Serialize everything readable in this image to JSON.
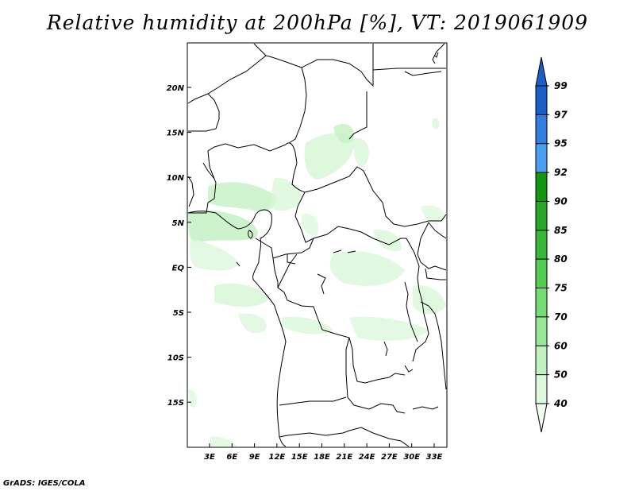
{
  "title": "Relative humidity at 200hPa [%], VT: 2019061909",
  "credit": "GrADS: IGES/COLA",
  "map": {
    "lon_labels": [
      "3E",
      "6E",
      "9E",
      "12E",
      "15E",
      "18E",
      "21E",
      "24E",
      "27E",
      "30E",
      "33E"
    ],
    "lat_labels": [
      "20N",
      "15N",
      "10N",
      "5N",
      "EQ",
      "5S",
      "10S",
      "15S"
    ]
  },
  "colorbar": {
    "labels": [
      "99",
      "97",
      "95",
      "92",
      "90",
      "85",
      "80",
      "75",
      "70",
      "60",
      "50",
      "40"
    ],
    "colors": [
      "#1a5fc8",
      "#2f7ee0",
      "#4a9ff0",
      "#129612",
      "#26a826",
      "#38b838",
      "#52cc52",
      "#74dc74",
      "#98e898",
      "#bff2bf",
      "#dcf9dc",
      "#f2fdf2"
    ]
  }
}
